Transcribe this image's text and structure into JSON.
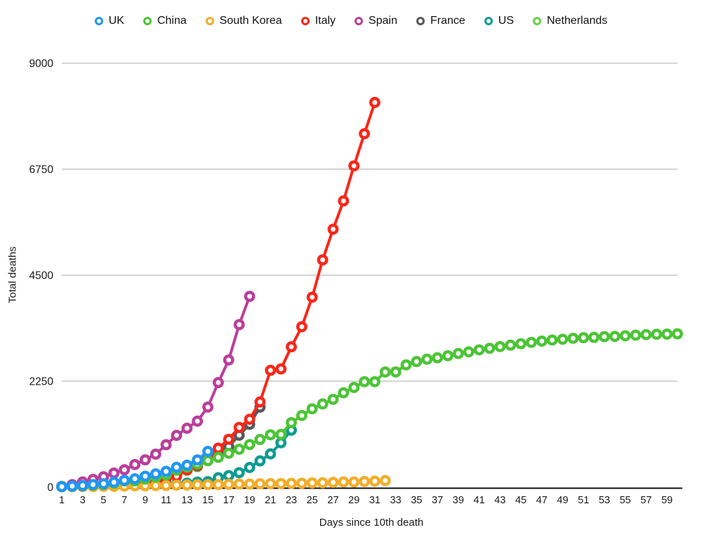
{
  "chart_data": {
    "type": "line",
    "title": "",
    "xlabel": "Days since 10th death",
    "ylabel": "Total deaths",
    "x_range": [
      1,
      60
    ],
    "ylim": [
      0,
      9000
    ],
    "yticks": [
      0,
      2250,
      4500,
      6750,
      9000
    ],
    "xticks": [
      1,
      3,
      5,
      7,
      9,
      11,
      13,
      15,
      17,
      19,
      21,
      23,
      25,
      27,
      29,
      31,
      33,
      35,
      37,
      39,
      41,
      43,
      45,
      47,
      49,
      51,
      53,
      55,
      57,
      59
    ],
    "grid": "horizontal-only",
    "gridline_color": "#C6C6C6",
    "axis_color": "#111111",
    "tick_label_color": "#1a1a1a",
    "background": "#FFFFFF",
    "marker": "open-circle",
    "legend_position": "top",
    "draw_order": [
      "Netherlands",
      "US",
      "France",
      "Spain",
      "Italy",
      "South Korea",
      "China",
      "UK"
    ],
    "series": [
      {
        "name": "UK",
        "color": "#2196F3",
        "start_day": 1,
        "values": [
          10,
          21,
          35,
          55,
          71,
          104,
          144,
          177,
          233,
          281,
          335,
          422,
          465,
          578,
          759
        ]
      },
      {
        "name": "China",
        "color": "#4CC436",
        "start_day": 1,
        "values": [
          17,
          18,
          26,
          42,
          56,
          82,
          131,
          133,
          171,
          213,
          259,
          361,
          425,
          491,
          563,
          633,
          718,
          805,
          905,
          1012,
          1112,
          1117,
          1369,
          1521,
          1663,
          1766,
          1864,
          2003,
          2116,
          2238,
          2238,
          2443,
          2445,
          2595,
          2665,
          2717,
          2746,
          2790,
          2837,
          2872,
          2914,
          2947,
          2983,
          3015,
          3044,
          3072,
          3100,
          3123,
          3139,
          3161,
          3172,
          3180,
          3194,
          3199,
          3213,
          3226,
          3237,
          3245,
          3248,
          3255
        ]
      },
      {
        "name": "South Korea",
        "color": "#F2AD2B",
        "start_day": 1,
        "values": [
          10,
          12,
          13,
          13,
          16,
          17,
          22,
          28,
          28,
          35,
          35,
          42,
          44,
          50,
          53,
          54,
          60,
          66,
          66,
          72,
          75,
          75,
          81,
          84,
          91,
          94,
          102,
          111,
          111,
          120,
          126,
          139
        ]
      },
      {
        "name": "Italy",
        "color": "#F9271A",
        "start_day": 1,
        "values": [
          10,
          12,
          17,
          21,
          29,
          34,
          52,
          79,
          107,
          148,
          197,
          233,
          366,
          463,
          631,
          827,
          1016,
          1266,
          1441,
          1809,
          2480,
          2510,
          2978,
          3405,
          4032,
          4825,
          5476,
          6077,
          6820,
          7503,
          8165
        ]
      },
      {
        "name": "Spain",
        "color": "#B93F9B",
        "start_day": 1,
        "values": [
          17,
          54,
          110,
          165,
          220,
          300,
          370,
          480,
          580,
          700,
          900,
          1100,
          1250,
          1400,
          1700,
          2220,
          2700,
          3450,
          4050
        ]
      },
      {
        "name": "France",
        "color": "#57585A",
        "start_day": 1,
        "values": [
          11,
          19,
          25,
          33,
          48,
          61,
          79,
          91,
          127,
          149,
          175,
          264,
          372,
          451,
          563,
          676,
          862,
          1102,
          1333,
          1698
        ]
      },
      {
        "name": "US",
        "color": "#0C9B93",
        "start_day": 1,
        "values": [
          11,
          12,
          14,
          17,
          21,
          22,
          28,
          36,
          40,
          47,
          54,
          63,
          85,
          108,
          118,
          200,
          244,
          307,
          417,
          557,
          706,
          942,
          1209
        ]
      },
      {
        "name": "Netherlands",
        "color": "#68D345",
        "start_day": 1,
        "values": [
          10,
          12,
          20,
          24,
          43,
          58,
          76,
          106,
          136,
          179,
          213,
          276,
          356,
          434
        ]
      }
    ]
  }
}
